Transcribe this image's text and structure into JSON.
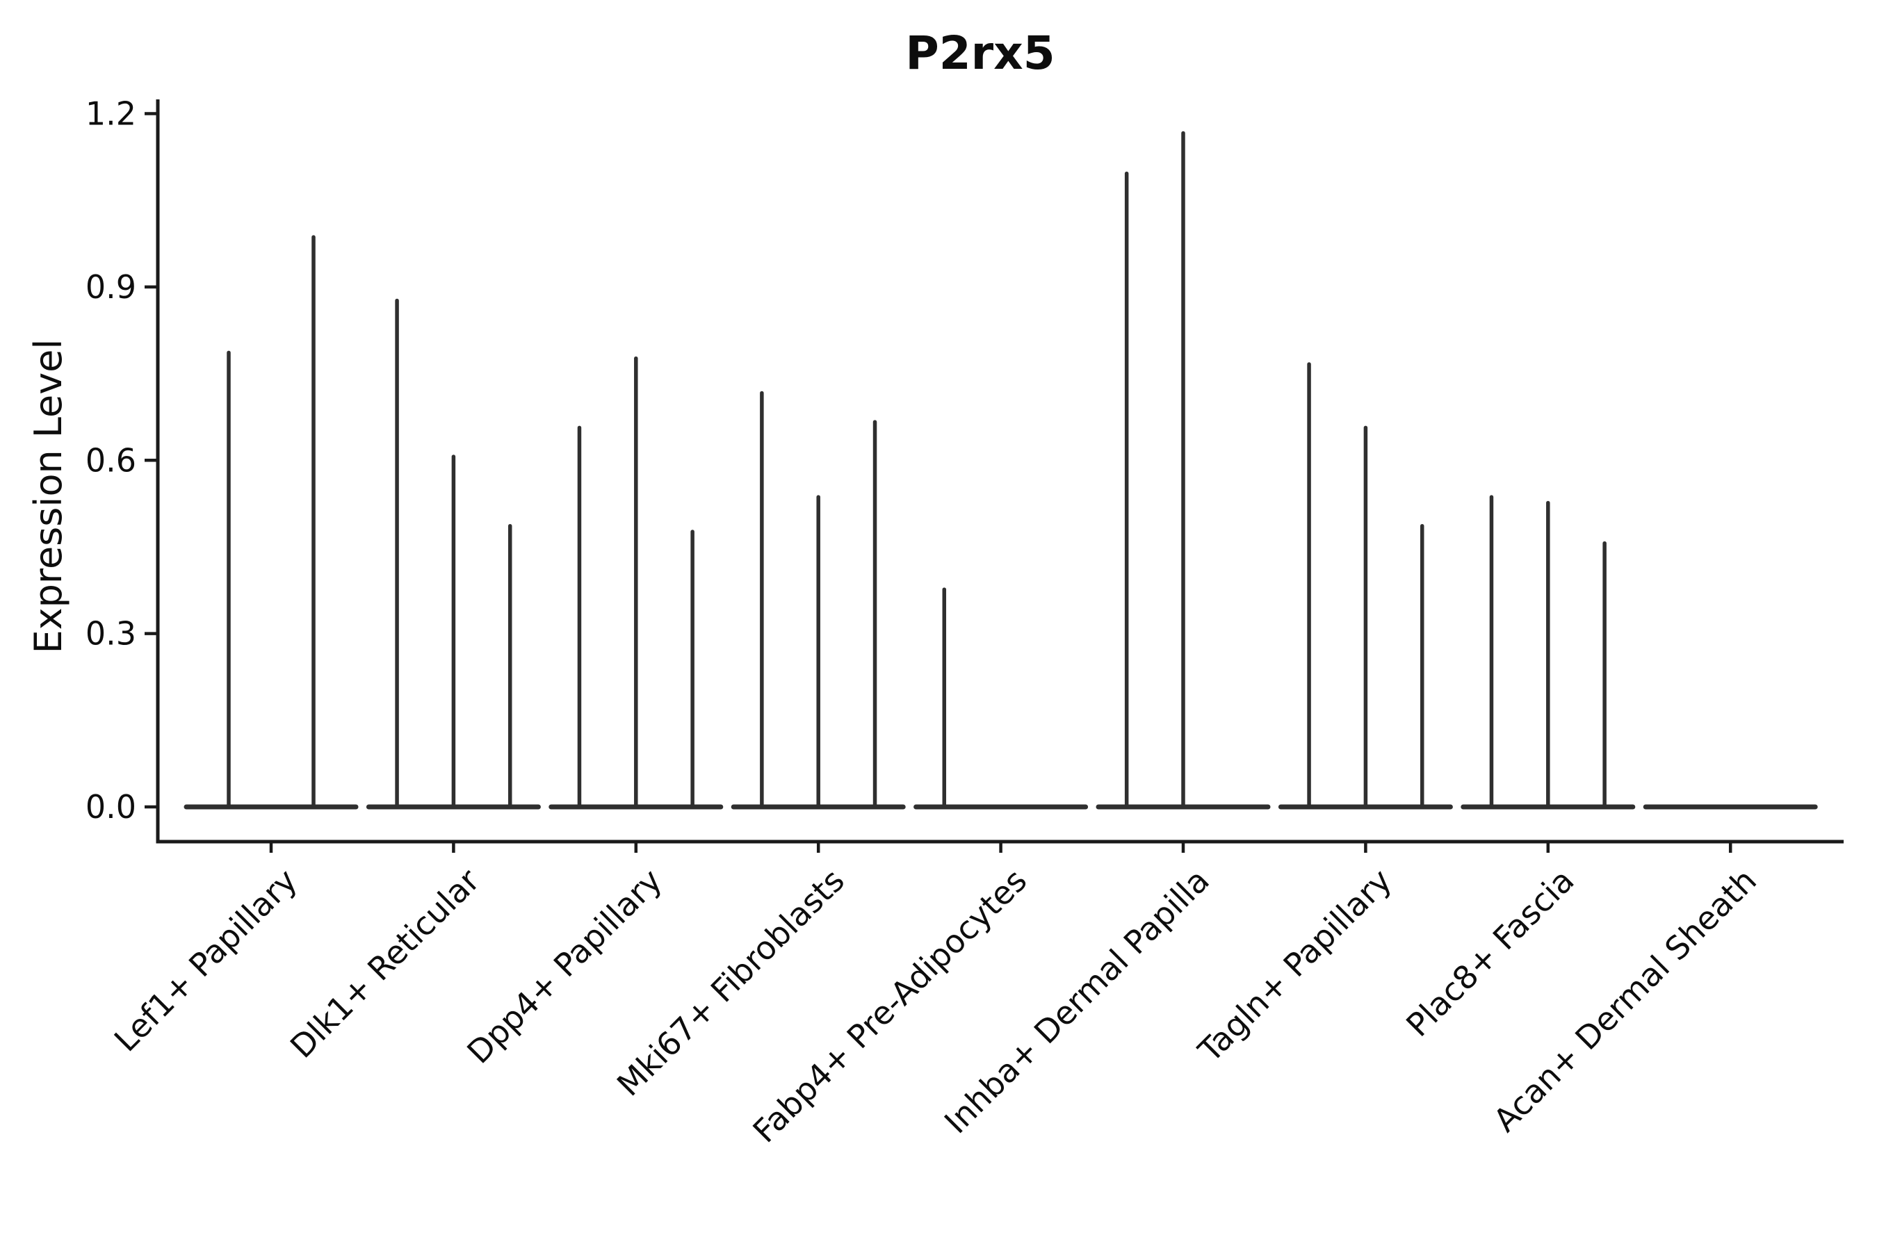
{
  "chart_data": {
    "type": "violin",
    "title": "P2rx5",
    "ylabel": "Expression Level",
    "xlabel": "",
    "ylim": [
      0,
      1.26
    ],
    "yticks": [
      0.0,
      0.3,
      0.6,
      0.9,
      1.2
    ],
    "grid": false,
    "legend": "none",
    "categories": [
      "Lef1+ Papillary",
      "Dlk1+ Reticular",
      "Dpp4+ Papillary",
      "Mki67+ Fibroblasts",
      "Fabp4+ Pre-Adipocytes",
      "Inhba+ Dermal Papilla",
      "Tagln+ Papillary",
      "Plac8+ Fascia",
      "Acan+ Dermal Sheath"
    ],
    "groups": [
      {
        "label": "Lef1+ Papillary",
        "violin_maxima": [
          0.79,
          0.99
        ]
      },
      {
        "label": "Dlk1+ Reticular",
        "violin_maxima": [
          0.88,
          0.61,
          0.49
        ]
      },
      {
        "label": "Dpp4+ Papillary",
        "violin_maxima": [
          0.66,
          0.78,
          0.48
        ]
      },
      {
        "label": "Mki67+ Fibroblasts",
        "violin_maxima": [
          0.72,
          0.54,
          0.67
        ]
      },
      {
        "label": "Fabp4+ Pre-Adipocytes",
        "violin_maxima": [
          0.38,
          0,
          0
        ]
      },
      {
        "label": "Inhba+ Dermal Papilla",
        "violin_maxima": [
          1.1,
          1.17,
          0
        ]
      },
      {
        "label": "Tagln+ Papillary",
        "violin_maxima": [
          0.77,
          0.66,
          0.49
        ]
      },
      {
        "label": "Plac8+ Fascia",
        "violin_maxima": [
          0.54,
          0.53,
          0.46
        ]
      },
      {
        "label": "Acan+ Dermal Sheath",
        "violin_maxima": [
          0,
          0,
          0
        ]
      }
    ],
    "colors": {
      "violin": "#2f2f2f",
      "axis": "#1a1a1a",
      "text": "#0d0d0d",
      "background": "#ffffff"
    }
  }
}
